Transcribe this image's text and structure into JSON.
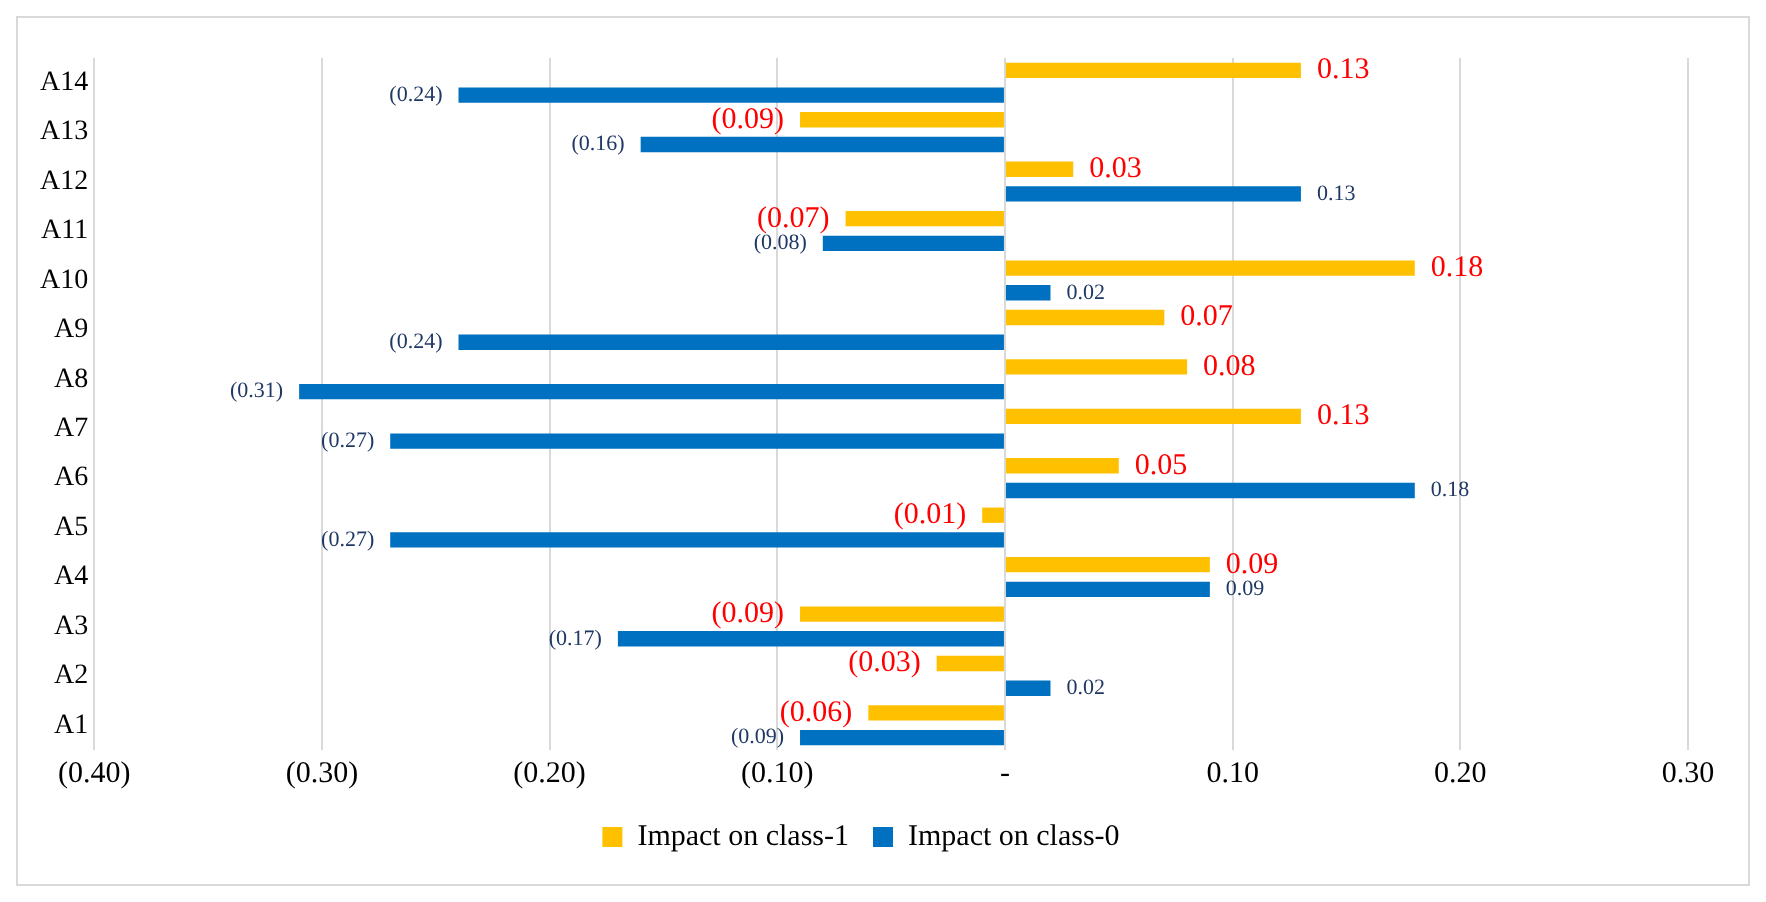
{
  "chart_data": {
    "type": "bar",
    "orientation": "horizontal",
    "categories": [
      "A14",
      "A13",
      "A12",
      "A11",
      "A10",
      "A9",
      "A8",
      "A7",
      "A6",
      "A5",
      "A4",
      "A3",
      "A2",
      "A1"
    ],
    "series": [
      {
        "name": "Impact on class-1",
        "color": "#ffc000",
        "values": [
          0.13,
          -0.09,
          0.03,
          -0.07,
          0.18,
          0.07,
          0.08,
          0.13,
          0.05,
          -0.01,
          0.09,
          -0.09,
          -0.03,
          -0.06
        ],
        "value_labels": [
          "0.13",
          "(0.09)",
          "0.03",
          "(0.07)",
          "0.18",
          "0.07",
          "0.08",
          "0.13",
          "0.05",
          "(0.01)",
          "0.09",
          "(0.09)",
          "(0.03)",
          "(0.06)"
        ]
      },
      {
        "name": "Impact on class-0",
        "color": "#0070c0",
        "values": [
          -0.24,
          -0.16,
          0.13,
          -0.08,
          0.02,
          -0.24,
          -0.31,
          -0.27,
          0.18,
          -0.27,
          0.09,
          -0.17,
          0.02,
          -0.09
        ],
        "value_labels": [
          "(0.24)",
          "(0.16)",
          "0.13",
          "(0.08)",
          "0.02",
          "(0.24)",
          "(0.31)",
          "(0.27)",
          "0.18",
          "(0.27)",
          "0.09",
          "(0.17)",
          "0.02",
          "(0.09)"
        ]
      }
    ],
    "xlim": [
      -0.4,
      0.3
    ],
    "xticks": [
      {
        "value": -0.4,
        "label": "(0.40)"
      },
      {
        "value": -0.3,
        "label": "(0.30)"
      },
      {
        "value": -0.2,
        "label": "(0.20)"
      },
      {
        "value": -0.1,
        "label": "(0.10)"
      },
      {
        "value": 0,
        "label": "-"
      },
      {
        "value": 0.1,
        "label": "0.10"
      },
      {
        "value": 0.2,
        "label": "0.20"
      },
      {
        "value": 0.3,
        "label": "0.30"
      }
    ],
    "grid": "x",
    "legend": "bottom"
  }
}
